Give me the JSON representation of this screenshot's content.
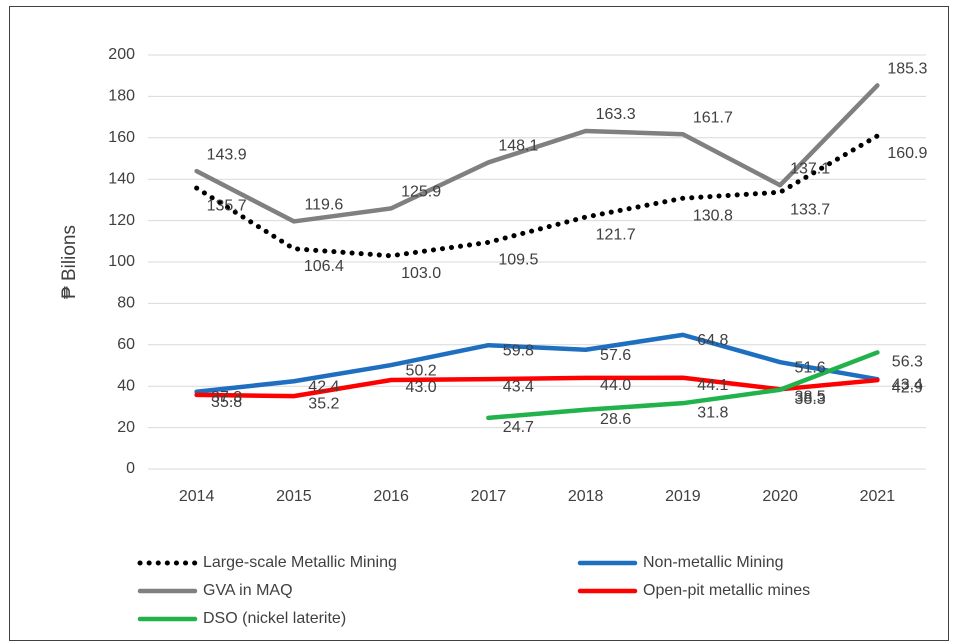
{
  "chart_data": {
    "type": "line",
    "ylabel": "₱ Bilions",
    "categories": [
      "2014",
      "2015",
      "2016",
      "2017",
      "2018",
      "2019",
      "2020",
      "2021"
    ],
    "ylim": [
      0,
      200
    ],
    "yticks": [
      0,
      20,
      40,
      60,
      80,
      100,
      120,
      140,
      160,
      180,
      200
    ],
    "grid": true,
    "legend": "bottom",
    "series": [
      {
        "name": "Large-scale Metallic Mining",
        "color": "#000000",
        "style": "dotted",
        "values": [
          135.7,
          106.4,
          103.0,
          109.5,
          121.7,
          130.8,
          133.7,
          160.9
        ],
        "value_labels": [
          "135.7",
          "106.4",
          "103.0",
          "109.5",
          "121.7",
          "130.8",
          "133.7",
          "160.9"
        ]
      },
      {
        "name": "Non-metallic Mining",
        "color": "#1f6fc0",
        "style": "solid",
        "values": [
          37.3,
          42.4,
          50.2,
          59.8,
          57.6,
          64.8,
          51.6,
          43.4
        ],
        "value_labels": [
          "37.3",
          "42.4",
          "50.2",
          "59.8",
          "57.6",
          "64.8",
          "51.6",
          "43.4"
        ]
      },
      {
        "name": "GVA in MAQ",
        "color": "#808080",
        "style": "solid",
        "values": [
          143.9,
          119.6,
          125.9,
          148.1,
          163.3,
          161.7,
          137.1,
          185.3
        ],
        "value_labels": [
          "143.9",
          "119.6",
          "125.9",
          "148.1",
          "163.3",
          "161.7",
          "137.1",
          "185.3"
        ]
      },
      {
        "name": "Open-pit metallic mines",
        "color": "#ff0000",
        "style": "solid",
        "values": [
          35.8,
          35.2,
          43.0,
          43.4,
          44.0,
          44.1,
          38.5,
          42.9
        ],
        "value_labels": [
          "35.8",
          "35.2",
          "43.0",
          "43.4",
          "44.0",
          "44.1",
          "38.5",
          "42.9"
        ]
      },
      {
        "name": "DSO (nickel laterite)",
        "color": "#22b24c",
        "style": "solid",
        "values": [
          null,
          null,
          null,
          24.7,
          28.6,
          31.8,
          38.3,
          56.3
        ],
        "value_labels": [
          null,
          null,
          null,
          "24.7",
          "28.6",
          "31.8",
          "38.3",
          "56.3"
        ]
      }
    ]
  }
}
